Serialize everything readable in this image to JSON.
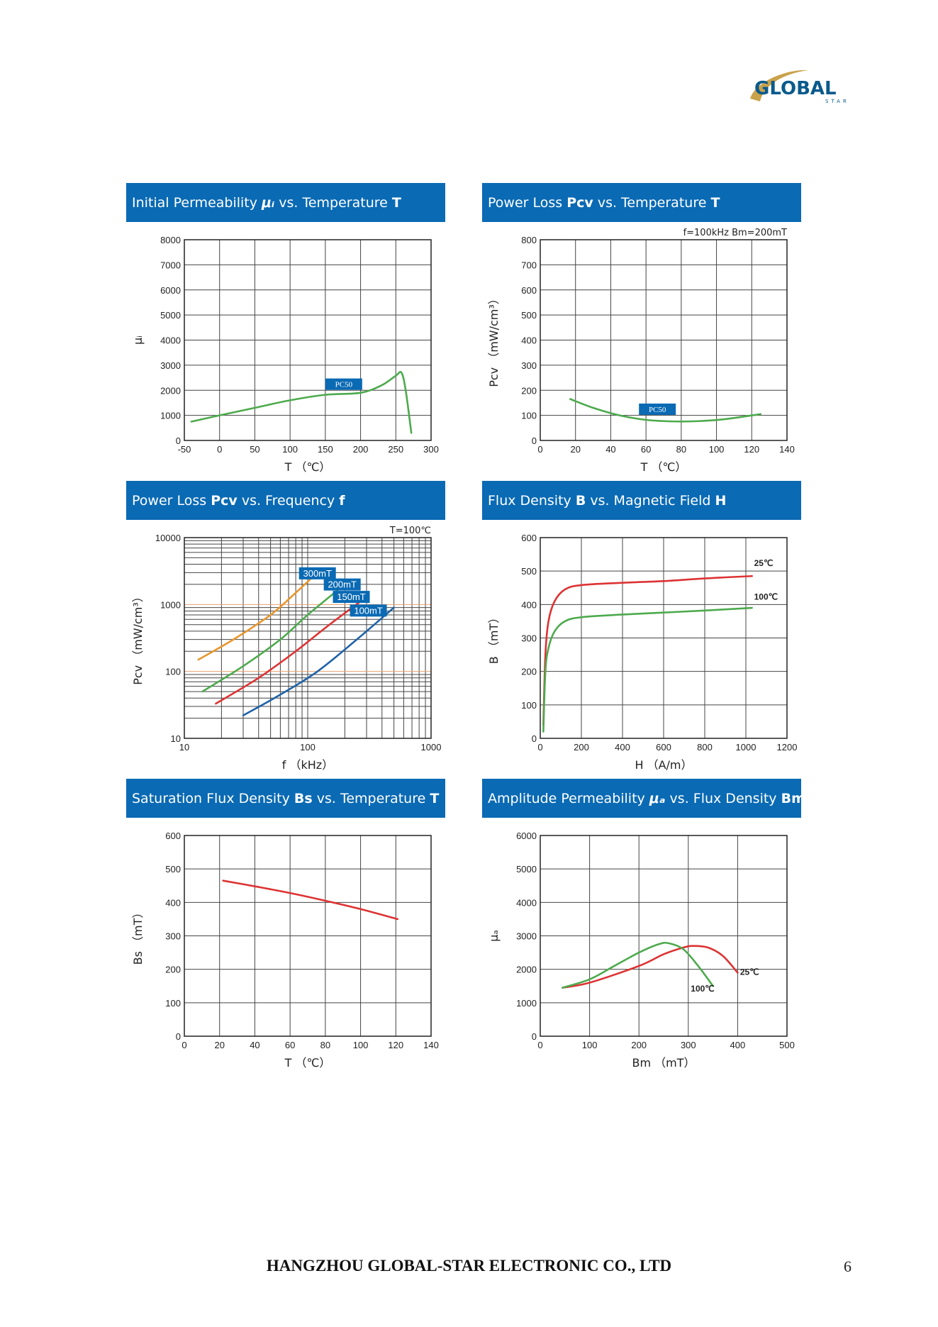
{
  "logo": {
    "word": "GLOBAL",
    "sub": "STAR",
    "colors": {
      "text": "#0a5a8c",
      "swoosh": "#c9a24a"
    }
  },
  "footer": {
    "company": "HANGZHOU GLOBAL-STAR ELECTRONIC CO., LTD",
    "page": "6"
  },
  "colors": {
    "header": "#0a6ab4",
    "green": "#4daa4d",
    "red": "#dd3333",
    "orange": "#e8962e",
    "blue": "#1f62a8",
    "grid": "#333333"
  },
  "charts": [
    {
      "header": {
        "pre": "Initial Permeability ",
        "sym": "μᵢ",
        "mid": " vs. Temperature ",
        "bold": "T"
      },
      "xlabel": "T （℃）",
      "ylabel": "μᵢ",
      "condition": "",
      "tag": "PC50",
      "chart_data": {
        "type": "line",
        "xlim": [
          -50,
          300
        ],
        "ylim": [
          0,
          8000
        ],
        "xticks": [
          -50,
          0,
          50,
          100,
          150,
          200,
          250,
          300
        ],
        "yticks": [
          0,
          1000,
          2000,
          3000,
          4000,
          5000,
          6000,
          7000,
          8000
        ],
        "grid": true,
        "series": [
          {
            "name": "PC50",
            "color": "green",
            "points": [
              [
                -40,
                750
              ],
              [
                0,
                1000
              ],
              [
                50,
                1300
              ],
              [
                100,
                1600
              ],
              [
                150,
                1820
              ],
              [
                200,
                1900
              ],
              [
                230,
                2200
              ],
              [
                250,
                2580
              ],
              [
                258,
                2700
              ],
              [
                264,
                2000
              ],
              [
                272,
                300
              ]
            ]
          }
        ]
      }
    },
    {
      "header": {
        "pre": "Power Loss ",
        "sym": "Pcv",
        "mid": " vs. Temperature ",
        "bold": "T"
      },
      "xlabel": "T （℃）",
      "ylabel": "Pcv （mW/cm³）",
      "condition": "f=100kHz    Bm=200mT",
      "tag": "PC50",
      "chart_data": {
        "type": "line",
        "xlim": [
          0,
          140
        ],
        "ylim": [
          0,
          800
        ],
        "xticks": [
          0,
          20,
          40,
          60,
          80,
          100,
          120,
          140
        ],
        "yticks": [
          0,
          100,
          200,
          300,
          400,
          500,
          600,
          700,
          800
        ],
        "grid": true,
        "series": [
          {
            "name": "PC50",
            "color": "green",
            "points": [
              [
                17,
                165
              ],
              [
                30,
                130
              ],
              [
                45,
                100
              ],
              [
                60,
                82
              ],
              [
                75,
                76
              ],
              [
                90,
                77
              ],
              [
                105,
                85
              ],
              [
                125,
                105
              ]
            ]
          }
        ]
      }
    },
    {
      "header": {
        "pre": "Power Loss ",
        "sym": "Pcv",
        "mid": " vs. Frequency ",
        "bold": "f"
      },
      "xlabel": "f （kHz）",
      "ylabel": "Pcv （mW/cm³）",
      "condition": "T=100℃",
      "chart_data": {
        "type": "line",
        "xscale": "log",
        "yscale": "log",
        "xlim": [
          10,
          1000
        ],
        "ylim": [
          10,
          10000
        ],
        "xticks": [
          10,
          100,
          1000
        ],
        "yticks": [
          10,
          100,
          1000,
          10000
        ],
        "grid": true,
        "series": [
          {
            "name": "300mT",
            "color": "orange",
            "points": [
              [
                13,
                150
              ],
              [
                25,
                300
              ],
              [
                50,
                700
              ],
              [
                80,
                1500
              ],
              [
                120,
                3000
              ]
            ]
          },
          {
            "name": "200mT",
            "color": "green",
            "points": [
              [
                14,
                50
              ],
              [
                30,
                120
              ],
              [
                60,
                300
              ],
              [
                100,
                700
              ],
              [
                200,
                2000
              ]
            ]
          },
          {
            "name": "150mT",
            "color": "red",
            "points": [
              [
                18,
                33
              ],
              [
                40,
                80
              ],
              [
                80,
                200
              ],
              [
                150,
                500
              ],
              [
                300,
                1300
              ]
            ]
          },
          {
            "name": "100mT",
            "color": "blue",
            "points": [
              [
                30,
                22
              ],
              [
                60,
                45
              ],
              [
                120,
                100
              ],
              [
                250,
                300
              ],
              [
                500,
                900
              ]
            ]
          }
        ]
      }
    },
    {
      "header": {
        "pre": "Flux Density ",
        "sym": "B",
        "mid": " vs. Magnetic Field ",
        "bold": "H"
      },
      "xlabel": "H （A/m）",
      "ylabel": "B （mT）",
      "condition": "",
      "chart_data": {
        "type": "line",
        "xlim": [
          0,
          1200
        ],
        "ylim": [
          0,
          600
        ],
        "xticks": [
          0,
          200,
          400,
          600,
          800,
          1000,
          1200
        ],
        "yticks": [
          0,
          100,
          200,
          300,
          400,
          500,
          600
        ],
        "grid": true,
        "series": [
          {
            "name": "25℃",
            "color": "red",
            "points": [
              [
                15,
                40
              ],
              [
                25,
                250
              ],
              [
                40,
                350
              ],
              [
                70,
                410
              ],
              [
                120,
                445
              ],
              [
                200,
                458
              ],
              [
                400,
                465
              ],
              [
                600,
                470
              ],
              [
                800,
                478
              ],
              [
                1030,
                485
              ]
            ]
          },
          {
            "name": "100℃",
            "color": "green",
            "points": [
              [
                15,
                20
              ],
              [
                25,
                200
              ],
              [
                40,
                270
              ],
              [
                70,
                320
              ],
              [
                120,
                350
              ],
              [
                200,
                362
              ],
              [
                400,
                370
              ],
              [
                600,
                376
              ],
              [
                800,
                382
              ],
              [
                1030,
                390
              ]
            ]
          }
        ]
      }
    },
    {
      "header": {
        "pre": "Saturation Flux Density ",
        "sym": "Bs",
        "mid": " vs. Temperature ",
        "bold": "T"
      },
      "xlabel": "T （℃）",
      "ylabel": "Bs （mT）",
      "condition": "",
      "chart_data": {
        "type": "line",
        "xlim": [
          0,
          140
        ],
        "ylim": [
          0,
          600
        ],
        "xticks": [
          0,
          20,
          40,
          60,
          80,
          100,
          120,
          140
        ],
        "yticks": [
          0,
          100,
          200,
          300,
          400,
          500,
          600
        ],
        "grid": true,
        "series": [
          {
            "name": "Bs",
            "color": "red",
            "points": [
              [
                22,
                465
              ],
              [
                40,
                448
              ],
              [
                60,
                428
              ],
              [
                80,
                405
              ],
              [
                100,
                380
              ],
              [
                121,
                350
              ]
            ]
          }
        ]
      }
    },
    {
      "header": {
        "pre": "Amplitude Permeability ",
        "sym": "μₐ",
        "mid": " vs. Flux Density ",
        "bold": "Bm"
      },
      "xlabel": "Bm （mT）",
      "ylabel": "μₐ",
      "condition": "",
      "chart_data": {
        "type": "line",
        "xlim": [
          0,
          500
        ],
        "ylim": [
          0,
          6000
        ],
        "xticks": [
          0,
          100,
          200,
          300,
          400,
          500
        ],
        "yticks": [
          0,
          1000,
          2000,
          3000,
          4000,
          5000,
          6000
        ],
        "grid": true,
        "series": [
          {
            "name": "25℃",
            "color": "red",
            "points": [
              [
                45,
                1450
              ],
              [
                100,
                1600
              ],
              [
                200,
                2100
              ],
              [
                250,
                2450
              ],
              [
                290,
                2650
              ],
              [
                310,
                2700
              ],
              [
                340,
                2650
              ],
              [
                370,
                2400
              ],
              [
                400,
                1900
              ]
            ]
          },
          {
            "name": "100℃",
            "color": "green",
            "points": [
              [
                45,
                1450
              ],
              [
                100,
                1700
              ],
              [
                150,
                2100
              ],
              [
                200,
                2500
              ],
              [
                240,
                2750
              ],
              [
                260,
                2780
              ],
              [
                290,
                2600
              ],
              [
                320,
                2100
              ],
              [
                350,
                1500
              ]
            ]
          }
        ]
      }
    }
  ]
}
